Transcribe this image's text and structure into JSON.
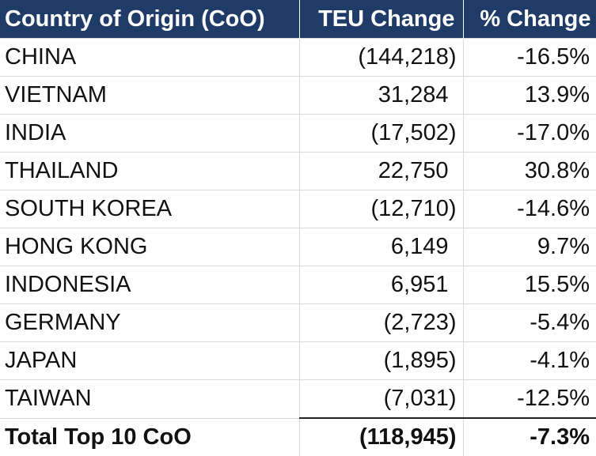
{
  "table": {
    "header": [
      "Country of Origin (CoO)",
      "TEU Change",
      "% Change"
    ],
    "rows": [
      [
        "CHINA",
        "(144,218)",
        "-16.5%"
      ],
      [
        "VIETNAM",
        "31,284",
        "13.9%"
      ],
      [
        "INDIA",
        "(17,502)",
        "-17.0%"
      ],
      [
        "THAILAND",
        "22,750",
        "30.8%"
      ],
      [
        "SOUTH KOREA",
        "(12,710)",
        "-14.6%"
      ],
      [
        "HONG KONG",
        "6,149",
        "9.7%"
      ],
      [
        "INDONESIA",
        "6,951",
        "15.5%"
      ],
      [
        "GERMANY",
        "(2,723)",
        "-5.4%"
      ],
      [
        "JAPAN",
        "(1,895)",
        "-4.1%"
      ],
      [
        "TAIWAN",
        "(7,031)",
        "-12.5%"
      ]
    ],
    "total": [
      "Total Top 10 CoO",
      "(118,945)",
      "-7.3%"
    ]
  }
}
